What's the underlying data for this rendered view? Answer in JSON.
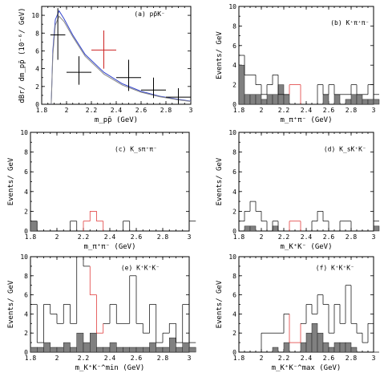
{
  "chart_data": [
    {
      "type": "line",
      "title": "(a) pp̄K⁻",
      "ylabel": "dBr/ dm_pp̄ (10⁻⁶/ GeV)",
      "xlabel": "m_pp̄ (GeV)",
      "xlim": [
        1.8,
        3.0
      ],
      "ylim": [
        0,
        11
      ],
      "xticks": [
        "1.8",
        "2",
        "2.2",
        "2.4",
        "2.6",
        "2.8",
        "3"
      ],
      "yticks": [
        "0",
        "2",
        "4",
        "6",
        "8",
        "10"
      ],
      "curves": [
        {
          "name": "blue",
          "color": "#3344cc",
          "x": [
            1.877,
            1.89,
            1.91,
            1.94,
            1.98,
            2.05,
            2.15,
            2.3,
            2.45,
            2.6,
            2.75,
            2.9,
            3.0
          ],
          "y": [
            0,
            6,
            9.5,
            10.5,
            9.6,
            7.8,
            5.6,
            3.6,
            2.3,
            1.45,
            0.9,
            0.55,
            0.35
          ]
        },
        {
          "name": "gray",
          "color": "#888888",
          "x": [
            1.877,
            1.89,
            1.91,
            1.94,
            1.98,
            2.05,
            2.15,
            2.3,
            2.45,
            2.6,
            2.75,
            2.9,
            3.0
          ],
          "y": [
            0,
            5.5,
            8.9,
            9.9,
            9.3,
            7.6,
            5.4,
            3.4,
            2.15,
            1.35,
            0.85,
            0.5,
            0.32
          ]
        }
      ],
      "points": [
        {
          "x": 1.93,
          "xerr": 0.06,
          "y": 7.8,
          "yerr_lo": 2.8,
          "yerr_hi": 3.0,
          "color": "#000000"
        },
        {
          "x": 2.1,
          "xerr": 0.1,
          "y": 3.6,
          "yerr_lo": 1.4,
          "yerr_hi": 1.8,
          "color": "#000000"
        },
        {
          "x": 2.3,
          "xerr": 0.1,
          "y": 6.1,
          "yerr_lo": 2.1,
          "yerr_hi": 2.2,
          "color": "#cc2222"
        },
        {
          "x": 2.5,
          "xerr": 0.1,
          "y": 3.0,
          "yerr_lo": 1.5,
          "yerr_hi": 2.0,
          "color": "#000000"
        },
        {
          "x": 2.7,
          "xerr": 0.1,
          "y": 1.6,
          "yerr_lo": 0.9,
          "yerr_hi": 1.4,
          "color": "#000000"
        },
        {
          "x": 2.9,
          "xerr": 0.1,
          "y": 0.8,
          "yerr_lo": 0.7,
          "yerr_hi": 1.0,
          "color": "#000000"
        }
      ]
    },
    {
      "type": "bar",
      "title": "(b) K⁺π⁺π⁻",
      "ylabel": "Events/ GeV",
      "xlabel": "m_π⁺π⁻ (GeV)",
      "xlim": [
        1.8,
        3.0
      ],
      "ylim": [
        0,
        10
      ],
      "xticks": [
        "1.8",
        "2",
        "2.2",
        "2.4",
        "2.6",
        "2.8",
        "3"
      ],
      "yticks": [
        "0",
        "2",
        "4",
        "6",
        "8",
        "10"
      ],
      "bin_width": 0.05,
      "open": [
        5,
        3,
        3,
        2,
        1,
        2,
        3,
        1,
        1,
        1,
        0,
        0,
        0,
        0,
        2,
        1,
        2,
        1,
        1,
        1,
        2,
        1,
        1,
        2,
        1
      ],
      "filled": [
        4,
        1,
        1,
        1,
        0.5,
        1,
        1,
        2,
        1,
        0,
        0,
        0,
        0,
        0,
        0,
        1,
        0,
        1,
        0,
        0.5,
        1,
        1,
        0.5,
        0.5,
        0.5
      ],
      "signal_bins": [
        9,
        10
      ],
      "signal_values": [
        2,
        2
      ]
    },
    {
      "type": "bar",
      "title": "(c) K_sπ⁺π⁻",
      "ylabel": "Events/ GeV",
      "xlabel": "m_π⁺π⁻ (GeV)",
      "xlim": [
        1.8,
        3.0
      ],
      "ylim": [
        0,
        10
      ],
      "xticks": [
        "1.8",
        "2",
        "2.2",
        "2.4",
        "2.6",
        "2.8",
        "3"
      ],
      "yticks": [
        "0",
        "2",
        "4",
        "6",
        "8",
        "10"
      ],
      "bin_width": 0.05,
      "open": [
        1,
        0,
        0,
        0,
        0,
        0,
        1,
        0,
        1,
        0,
        0,
        0,
        0,
        0,
        1,
        0,
        0,
        0,
        0,
        0,
        0,
        0,
        0,
        0,
        1
      ],
      "filled": [
        1,
        0,
        0,
        0,
        0,
        0,
        0,
        0,
        0,
        0,
        0,
        0,
        0,
        0,
        0,
        0,
        0,
        0,
        0,
        0,
        0,
        0,
        0,
        0,
        0
      ],
      "signal_bins": [
        8,
        9,
        10
      ],
      "signal_values": [
        1,
        2,
        1
      ]
    },
    {
      "type": "bar",
      "title": "(d) K_sK⁺K⁻",
      "ylabel": "Events/ GeV",
      "xlabel": "m_K⁺K⁻ (GeV)",
      "xlim": [
        1.8,
        3.0
      ],
      "ylim": [
        0,
        10
      ],
      "xticks": [
        "1.8",
        "2",
        "2.2",
        "2.4",
        "2.6",
        "2.8",
        "3"
      ],
      "yticks": [
        "0",
        "2",
        "4",
        "6",
        "8",
        "10"
      ],
      "bin_width": 0.05,
      "open": [
        1,
        2,
        3,
        2,
        1,
        0,
        1,
        0,
        0,
        1,
        0,
        0,
        0,
        1,
        2,
        1,
        0,
        0,
        1,
        1,
        0,
        0,
        0,
        0,
        1
      ],
      "filled": [
        0,
        0.5,
        0.5,
        0,
        0,
        0,
        0.5,
        0,
        0,
        0,
        0,
        0,
        0,
        0,
        0,
        0,
        0,
        0,
        0,
        0,
        0,
        0,
        0,
        0,
        0.5
      ],
      "signal_bins": [
        9,
        10
      ],
      "signal_values": [
        1,
        1
      ]
    },
    {
      "type": "bar",
      "title": "(e) K⁺K⁺K⁻",
      "ylabel": "Events/ GeV",
      "xlabel": "m_K⁺K⁻^min (GeV)",
      "xlim": [
        1.8,
        3.0
      ],
      "ylim": [
        0,
        10
      ],
      "xticks": [
        "1.8",
        "2",
        "2.2",
        "2.4",
        "2.6",
        "2.8",
        "3"
      ],
      "yticks": [
        "0",
        "2",
        "4",
        "6",
        "8",
        "10"
      ],
      "bin_width": 0.05,
      "open": [
        5,
        1,
        5,
        4,
        3,
        5,
        3,
        10,
        9,
        6,
        3,
        3,
        5,
        3,
        3,
        8,
        3,
        2,
        5,
        1,
        2,
        3,
        1,
        5,
        1
      ],
      "filled": [
        0.5,
        0.5,
        1,
        0.5,
        0.5,
        1,
        0.5,
        2,
        1,
        2,
        0.5,
        0.5,
        1,
        0.5,
        0.5,
        0.5,
        0.5,
        0.5,
        1,
        0.5,
        0.5,
        1.5,
        0.5,
        1,
        0.5
      ],
      "signal_bins": [
        9,
        10
      ],
      "signal_values": [
        6,
        2
      ]
    },
    {
      "type": "bar",
      "title": "(f) K⁺K⁺K⁻",
      "ylabel": "Events/ GeV",
      "xlabel": "m_K⁺K⁻^max (GeV)",
      "xlim": [
        1.8,
        3.0
      ],
      "ylim": [
        0,
        10
      ],
      "xticks": [
        "1.8",
        "2",
        "2.2",
        "2.4",
        "2.6",
        "2.8",
        "3"
      ],
      "yticks": [
        "0",
        "2",
        "4",
        "6",
        "8",
        "10"
      ],
      "bin_width": 0.05,
      "open": [
        0,
        0,
        0,
        0,
        2,
        2,
        2,
        2,
        4,
        0,
        3,
        3,
        5,
        4,
        6,
        5,
        2,
        5,
        3,
        7,
        3,
        2,
        1,
        3,
        0
      ],
      "filled": [
        0,
        0,
        0,
        0,
        0,
        0,
        0.5,
        0,
        1,
        0,
        0,
        1,
        2,
        3,
        2,
        1,
        0.5,
        1,
        1,
        1,
        0.5,
        0,
        0,
        0,
        0
      ],
      "signal_bins": [
        9,
        10
      ],
      "signal_values": [
        1,
        1
      ]
    }
  ]
}
